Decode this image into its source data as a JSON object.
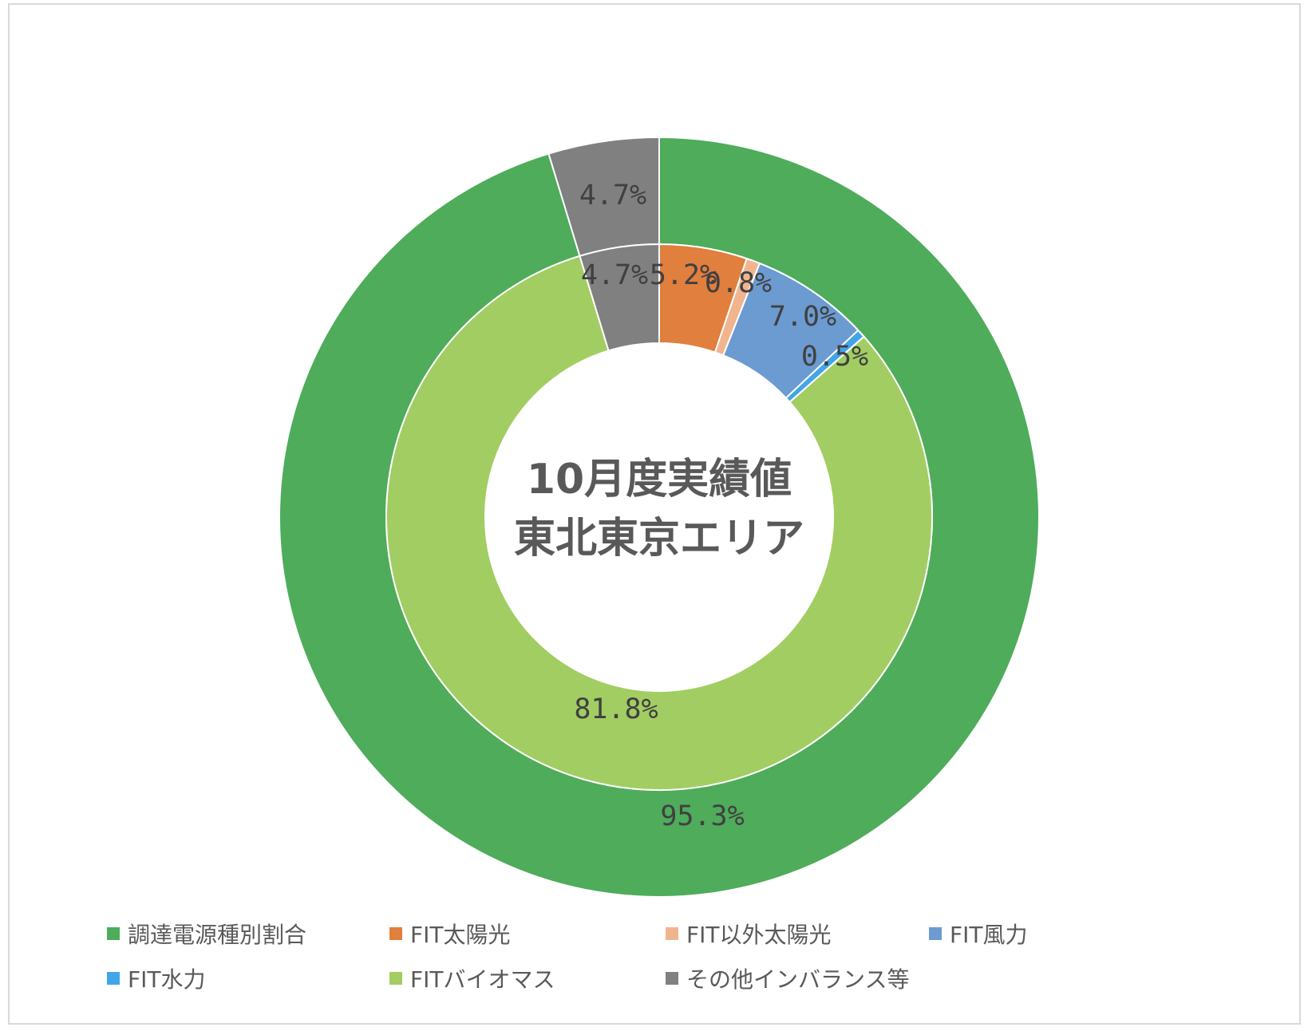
{
  "chart_data": {
    "type": "donut",
    "center_title": [
      "10月度実績値",
      "東北東京エリア"
    ],
    "rings": [
      {
        "name": "outer",
        "slices": [
          {
            "category": "調達電源種別割合",
            "value": 95.3,
            "label": "95.3%"
          },
          {
            "category": "その他インバランス等",
            "value": 4.7,
            "label": "4.7%"
          }
        ]
      },
      {
        "name": "inner",
        "slices": [
          {
            "category": "FIT太陽光",
            "value": 5.2,
            "label": "5.2%"
          },
          {
            "category": "FIT以外太陽光",
            "value": 0.8,
            "label": "0.8%"
          },
          {
            "category": "FIT風力",
            "value": 7.0,
            "label": "7.0%"
          },
          {
            "category": "FIT水力",
            "value": 0.5,
            "label": "0.5%"
          },
          {
            "category": "FITバイオマス",
            "value": 81.8,
            "label": "81.8%"
          },
          {
            "category": "その他インバランス等",
            "value": 4.7,
            "label": "4.7%"
          }
        ]
      }
    ],
    "legend": [
      {
        "label": "調達電源種別割合",
        "color": "#4eac5b"
      },
      {
        "label": "FIT太陽光",
        "color": "#e07f3e"
      },
      {
        "label": "FIT以外太陽光",
        "color": "#f0b58f"
      },
      {
        "label": "FIT風力",
        "color": "#6b9bd1"
      },
      {
        "label": "FIT水力",
        "color": "#42a5e8"
      },
      {
        "label": "FITバイオマス",
        "color": "#a2cd62"
      },
      {
        "label": "その他インバランス等",
        "color": "#808080"
      }
    ],
    "legend_position": "bottom"
  }
}
